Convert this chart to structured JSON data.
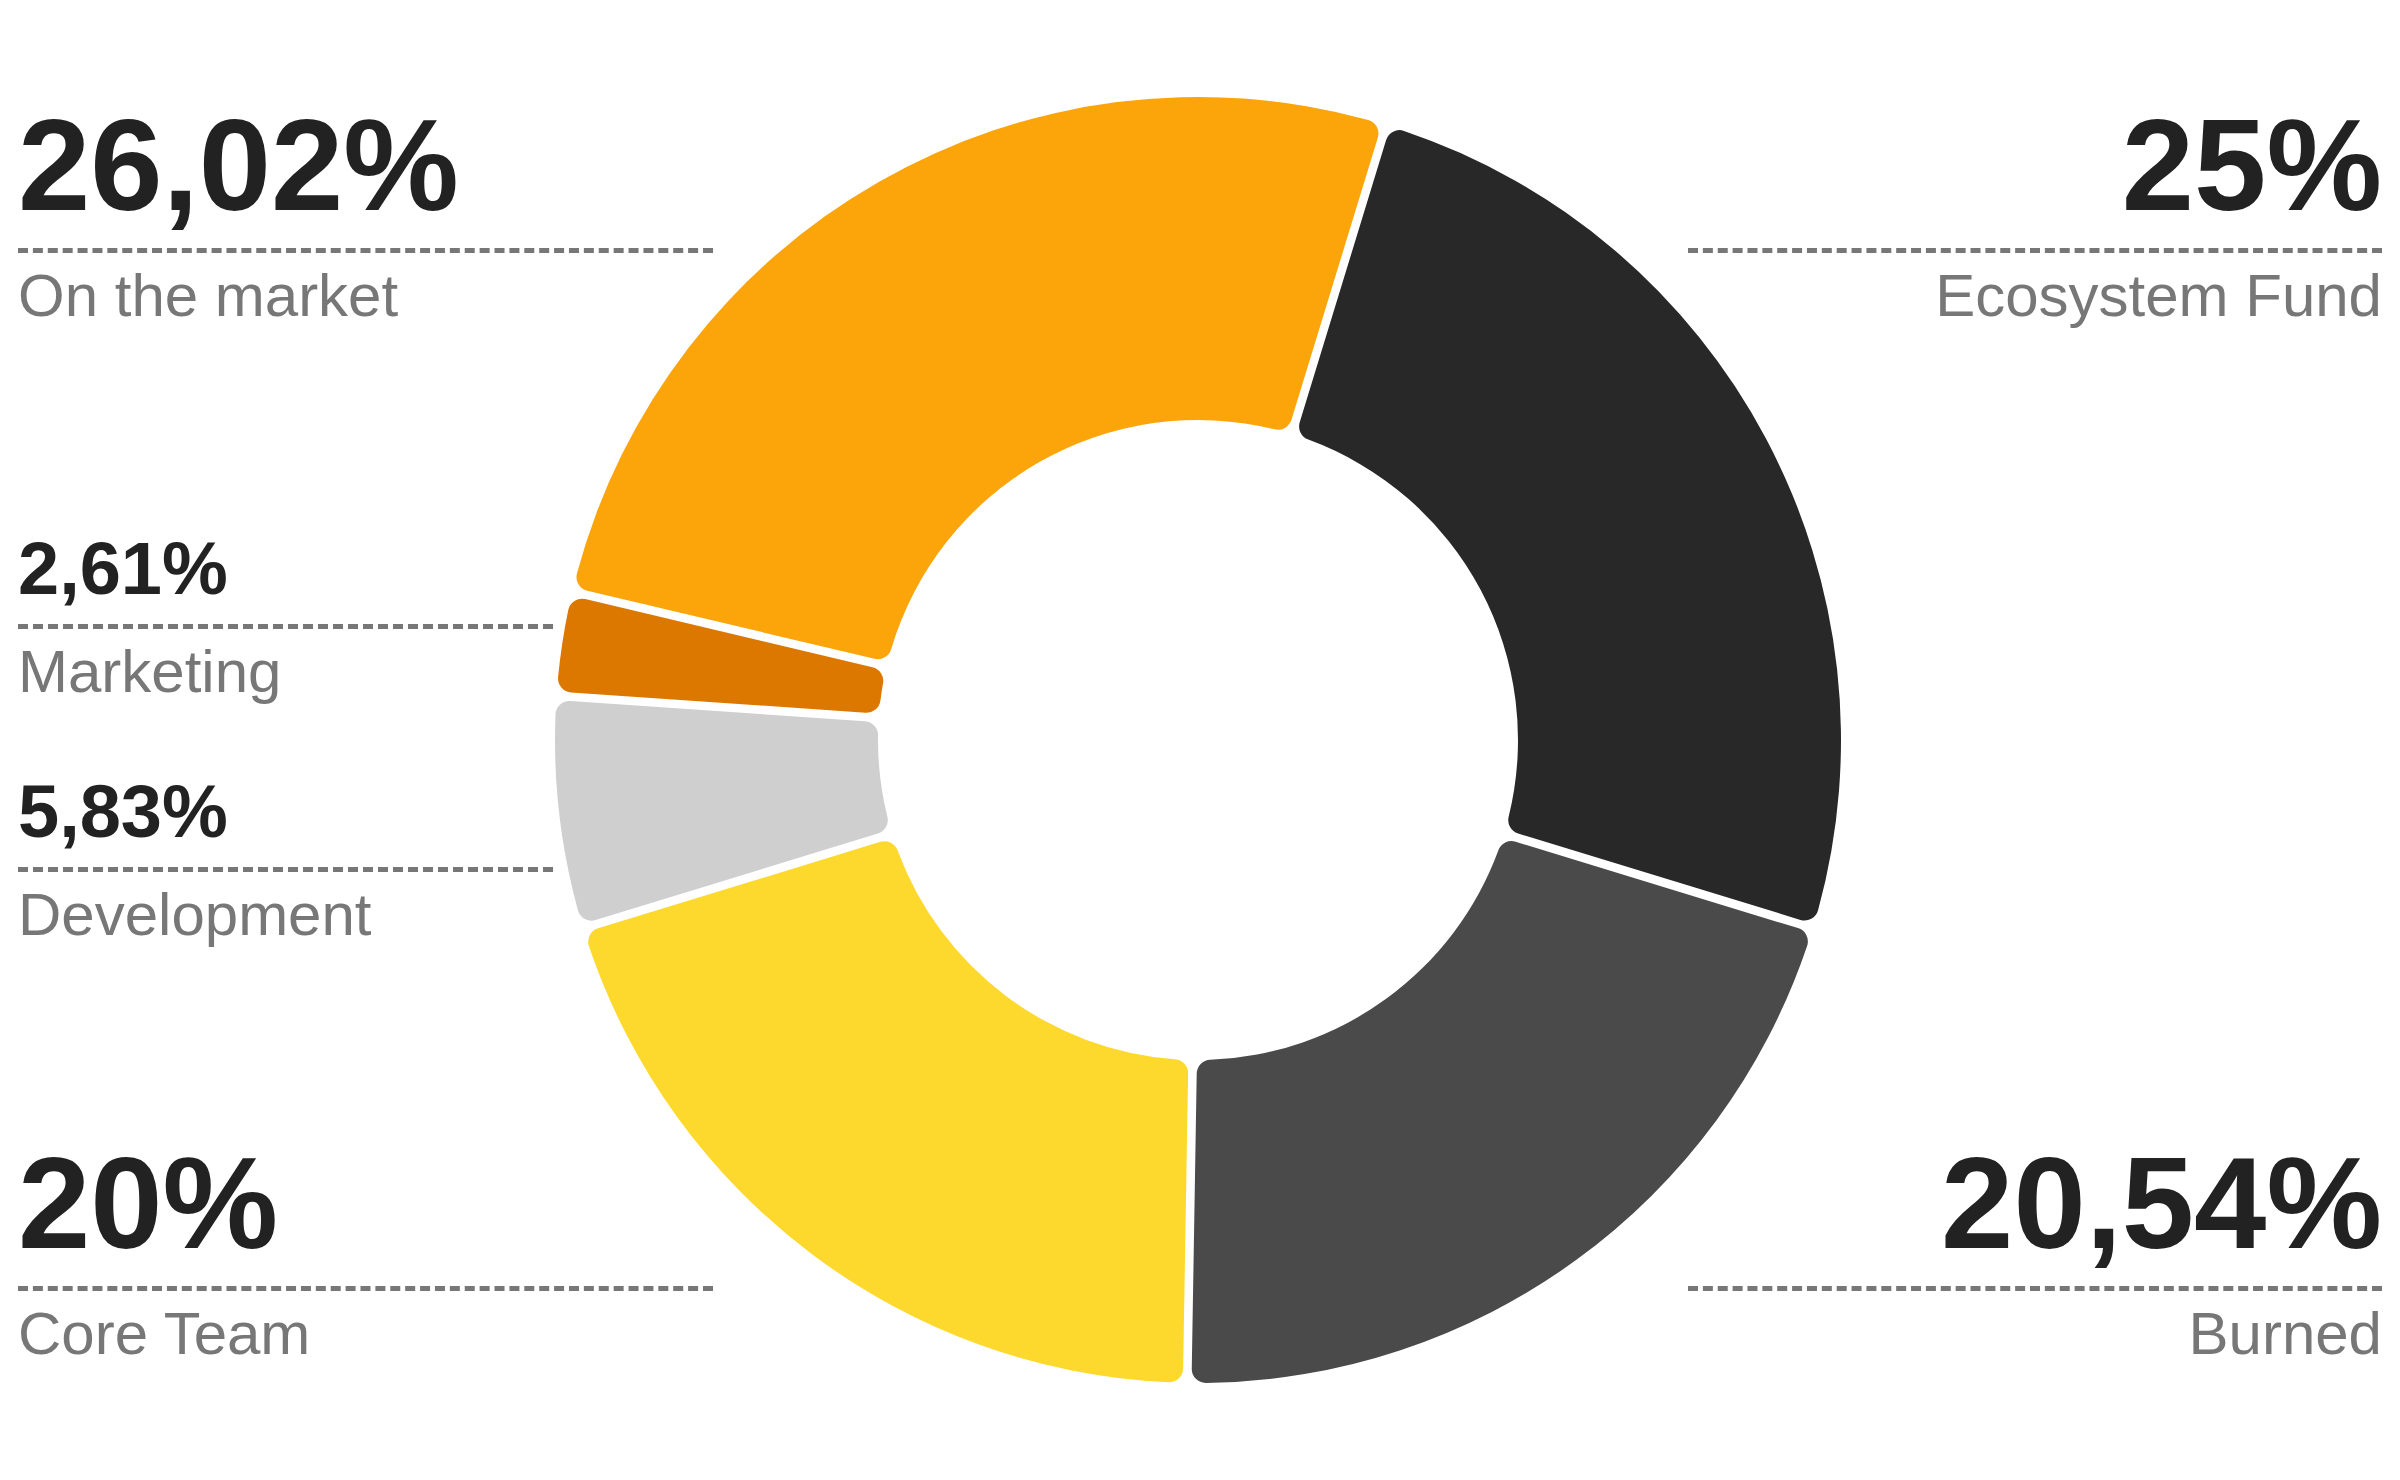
{
  "chart_data": {
    "type": "donut",
    "categories": [
      "Ecosystem Fund",
      "Burned",
      "Core Team",
      "Development",
      "Marketing",
      "On the market"
    ],
    "values": [
      25,
      20.54,
      20,
      5.83,
      2.61,
      26.02
    ],
    "colors": [
      "#282828",
      "#4a4a4a",
      "#fdd92e",
      "#cfcfcf",
      "#dc7800",
      "#fca50a"
    ],
    "value_labels": [
      "25%",
      "20,54%",
      "20%",
      "5,83%",
      "2,61%",
      "26,02%"
    ]
  }
}
